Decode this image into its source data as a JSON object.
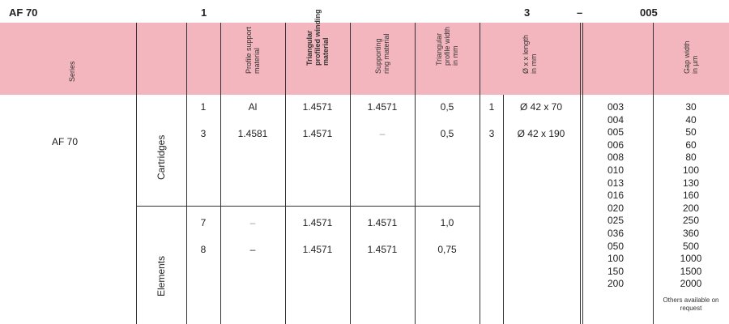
{
  "code": {
    "series": "AF 70",
    "d1": "1",
    "d2": "3",
    "dash": "–",
    "d3": "005"
  },
  "headers": {
    "series": "Series",
    "profile_support": "Profile support\nmaterial",
    "winding": "Triangular\nprofiled winding\nmaterial",
    "ring": "Supporting\nring material",
    "profile_width": "Triangular\nprofile width\nin mm",
    "dimension": "Ø x x length\nin mm",
    "gap": "Gap width\nin µm"
  },
  "series_value": "AF 70",
  "cartridges": {
    "label": "Cartridges",
    "rows": [
      {
        "code": "1",
        "support": "Al",
        "winding": "1.4571",
        "ring": "1.4571",
        "width": "0,5"
      },
      {
        "code": "3",
        "support": "1.4581",
        "winding": "1.4571",
        "ring": "–",
        "width": "0,5"
      }
    ]
  },
  "elements": {
    "label": "Elements",
    "rows": [
      {
        "code": "7",
        "support": "–",
        "winding": "1.4571",
        "ring": "1.4571",
        "width": "1,0"
      },
      {
        "code": "8",
        "support": "–",
        "winding": "1.4571",
        "ring": "1.4571",
        "width": "0,75"
      }
    ]
  },
  "dimensions": [
    {
      "code": "1",
      "value": "Ø 42 x 70"
    },
    {
      "code": "3",
      "value": "Ø 42 x 190"
    }
  ],
  "gap_codes": [
    "003",
    "004",
    "005",
    "006",
    "008",
    "010",
    "013",
    "016",
    "020",
    "025",
    "036",
    "050",
    "100",
    "150",
    "200"
  ],
  "gap_values": [
    "30",
    "40",
    "50",
    "60",
    "80",
    "100",
    "130",
    "160",
    "200",
    "250",
    "360",
    "500",
    "1000",
    "1500",
    "2000"
  ],
  "note": "Others available\non request"
}
